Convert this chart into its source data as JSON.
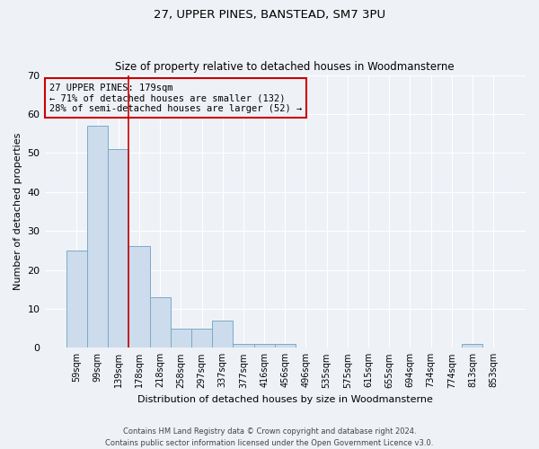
{
  "title_line1": "27, UPPER PINES, BANSTEAD, SM7 3PU",
  "title_line2": "Size of property relative to detached houses in Woodmansterne",
  "xlabel": "Distribution of detached houses by size in Woodmansterne",
  "ylabel": "Number of detached properties",
  "bar_labels": [
    "59sqm",
    "99sqm",
    "139sqm",
    "178sqm",
    "218sqm",
    "258sqm",
    "297sqm",
    "337sqm",
    "377sqm",
    "416sqm",
    "456sqm",
    "496sqm",
    "535sqm",
    "575sqm",
    "615sqm",
    "655sqm",
    "694sqm",
    "734sqm",
    "774sqm",
    "813sqm",
    "853sqm"
  ],
  "bar_values": [
    25,
    57,
    51,
    26,
    13,
    5,
    5,
    7,
    1,
    1,
    1,
    0,
    0,
    0,
    0,
    0,
    0,
    0,
    0,
    1,
    0
  ],
  "bar_color": "#ccdcec",
  "bar_edge_color": "#7aaac8",
  "annotation_text": "27 UPPER PINES: 179sqm\n← 71% of detached houses are smaller (132)\n28% of semi-detached houses are larger (52) →",
  "vline_index": 2.5,
  "vline_color": "#cc0000",
  "annotation_box_edge_color": "#cc0000",
  "ylim": [
    0,
    70
  ],
  "yticks": [
    0,
    10,
    20,
    30,
    40,
    50,
    60,
    70
  ],
  "background_color": "#eef2f7",
  "grid_color": "#ffffff",
  "footnote": "Contains HM Land Registry data © Crown copyright and database right 2024.\nContains public sector information licensed under the Open Government Licence v3.0."
}
